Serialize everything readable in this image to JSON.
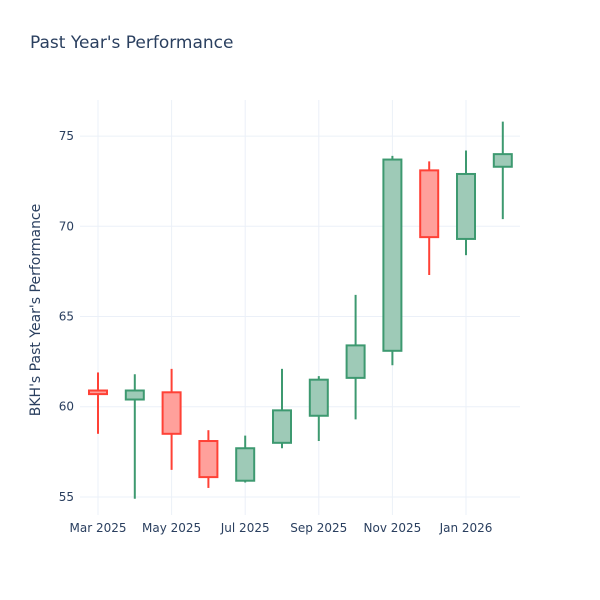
{
  "chart_data": {
    "type": "candlestick",
    "title": "Past Year's Performance",
    "xlabel": "",
    "ylabel": "BKH's Past Year's Performance",
    "ylim": [
      54,
      77
    ],
    "y_ticks": [
      55,
      60,
      65,
      70,
      75
    ],
    "x_ticks": [
      {
        "label": "Mar 2025",
        "month_index": 0
      },
      {
        "label": "May 2025",
        "month_index": 2
      },
      {
        "label": "Jul 2025",
        "month_index": 4
      },
      {
        "label": "Sep 2025",
        "month_index": 6
      },
      {
        "label": "Nov 2025",
        "month_index": 8
      },
      {
        "label": "Jan 2026",
        "month_index": 10
      }
    ],
    "colors": {
      "increasing": "#3d9970",
      "increasing_fill": "#9ecab7",
      "decreasing": "#ff4136",
      "decreasing_fill": "#ffa09b",
      "grid": "#ebf0f8",
      "text": "#2a3f5f"
    },
    "candles": [
      {
        "month": "Mar 2025",
        "open": 60.9,
        "high": 61.9,
        "low": 58.5,
        "close": 60.7
      },
      {
        "month": "Apr 2025",
        "open": 60.4,
        "high": 61.8,
        "low": 54.9,
        "close": 60.9
      },
      {
        "month": "May 2025",
        "open": 60.8,
        "high": 62.1,
        "low": 56.5,
        "close": 58.5
      },
      {
        "month": "Jun 2025",
        "open": 58.1,
        "high": 58.7,
        "low": 55.5,
        "close": 56.1
      },
      {
        "month": "Jul 2025",
        "open": 55.9,
        "high": 58.4,
        "low": 55.8,
        "close": 57.7
      },
      {
        "month": "Aug 2025",
        "open": 58.0,
        "high": 62.1,
        "low": 57.7,
        "close": 59.8
      },
      {
        "month": "Sep 2025",
        "open": 59.5,
        "high": 61.7,
        "low": 58.1,
        "close": 61.5
      },
      {
        "month": "Oct 2025",
        "open": 61.6,
        "high": 66.2,
        "low": 59.3,
        "close": 63.4
      },
      {
        "month": "Nov 2025",
        "open": 63.1,
        "high": 73.9,
        "low": 62.3,
        "close": 73.7
      },
      {
        "month": "Dec 2025",
        "open": 73.1,
        "high": 73.6,
        "low": 67.3,
        "close": 69.4
      },
      {
        "month": "Jan 2026",
        "open": 69.3,
        "high": 74.2,
        "low": 68.4,
        "close": 72.9
      },
      {
        "month": "Feb 2026",
        "open": 73.3,
        "high": 75.8,
        "low": 70.4,
        "close": 74.0
      }
    ]
  }
}
